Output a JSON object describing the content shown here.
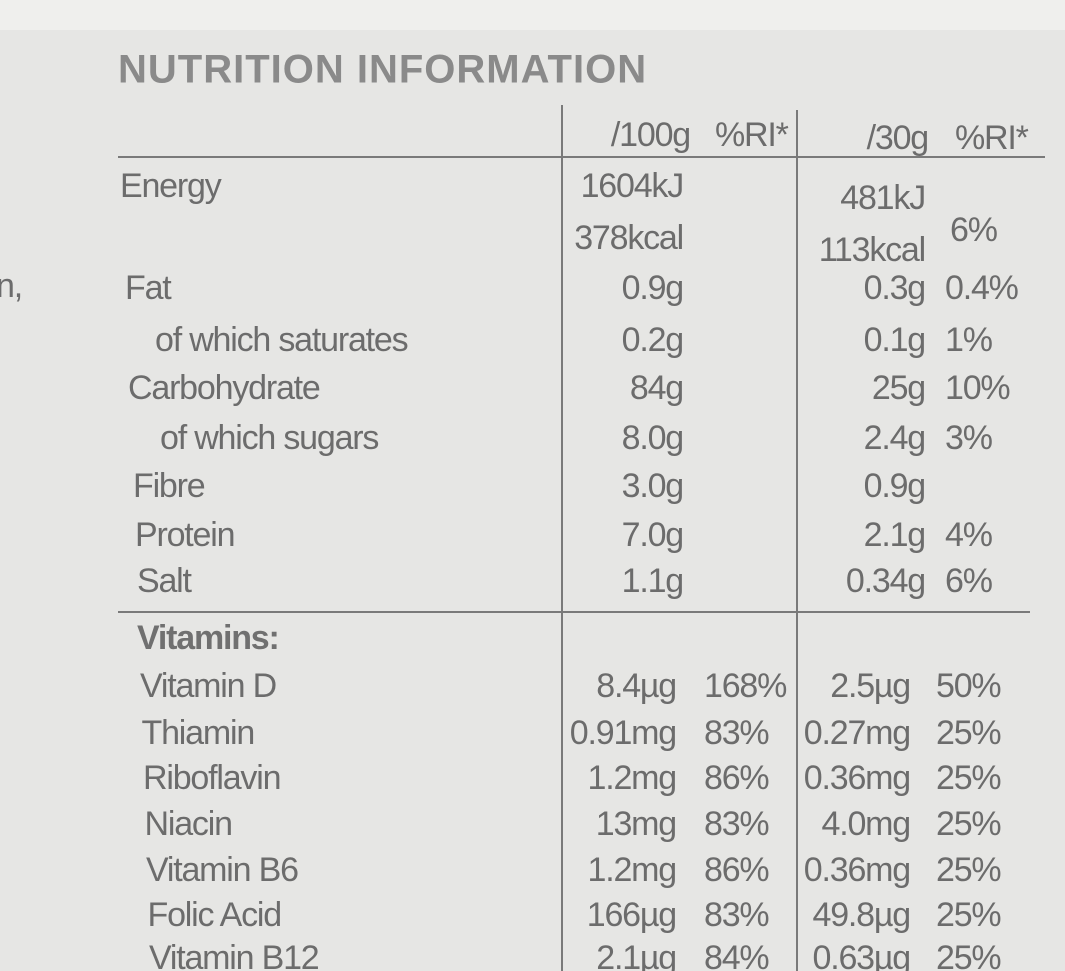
{
  "edge_fragment": "n,",
  "title": "NUTRITION INFORMATION",
  "header": {
    "per_100g": "/100g",
    "ri_100g": "%RI*",
    "per_30g": "/30g",
    "ri_30g": "%RI*"
  },
  "nutrients": [
    {
      "label": "Energy",
      "per_100g": [
        "1604kJ",
        "378kcal"
      ],
      "ri_100g": null,
      "per_30g": [
        "481kJ",
        "113kcal"
      ],
      "ri_30g": "6%"
    },
    {
      "label": "Fat",
      "per_100g": "0.9g",
      "ri_100g": null,
      "per_30g": "0.3g",
      "ri_30g": "0.4%"
    },
    {
      "label": "of which saturates",
      "per_100g": "0.2g",
      "ri_100g": null,
      "per_30g": "0.1g",
      "ri_30g": "1%"
    },
    {
      "label": "Carbohydrate",
      "per_100g": "84g",
      "ri_100g": null,
      "per_30g": "25g",
      "ri_30g": "10%"
    },
    {
      "label": "of which sugars",
      "per_100g": "8.0g",
      "ri_100g": null,
      "per_30g": "2.4g",
      "ri_30g": "3%"
    },
    {
      "label": "Fibre",
      "per_100g": "3.0g",
      "ri_100g": null,
      "per_30g": "0.9g",
      "ri_30g": null
    },
    {
      "label": "Protein",
      "per_100g": "7.0g",
      "ri_100g": null,
      "per_30g": "2.1g",
      "ri_30g": "4%"
    },
    {
      "label": "Salt",
      "per_100g": "1.1g",
      "ri_100g": null,
      "per_30g": "0.34g",
      "ri_30g": "6%"
    }
  ],
  "vitamins_heading": "Vitamins:",
  "vitamins": [
    {
      "label": "Vitamin D",
      "per_100g": "8.4µg",
      "ri_100g": "168%",
      "per_30g": "2.5µg",
      "ri_30g": "50%"
    },
    {
      "label": "Thiamin",
      "per_100g": "0.91mg",
      "ri_100g": "83%",
      "per_30g": "0.27mg",
      "ri_30g": "25%"
    },
    {
      "label": "Riboflavin",
      "per_100g": "1.2mg",
      "ri_100g": "86%",
      "per_30g": "0.36mg",
      "ri_30g": "25%"
    },
    {
      "label": "Niacin",
      "per_100g": "13mg",
      "ri_100g": "83%",
      "per_30g": "4.0mg",
      "ri_30g": "25%"
    },
    {
      "label": "Vitamin B6",
      "per_100g": "1.2mg",
      "ri_100g": "86%",
      "per_30g": "0.36mg",
      "ri_30g": "25%"
    },
    {
      "label": "Folic Acid",
      "per_100g": "166µg",
      "ri_100g": "83%",
      "per_30g": "49.8µg",
      "ri_30g": "25%"
    },
    {
      "label": "Vitamin B12",
      "per_100g": "2.1µg",
      "ri_100g": "84%",
      "per_30g": "0.63µg",
      "ri_30g": "25%"
    }
  ]
}
